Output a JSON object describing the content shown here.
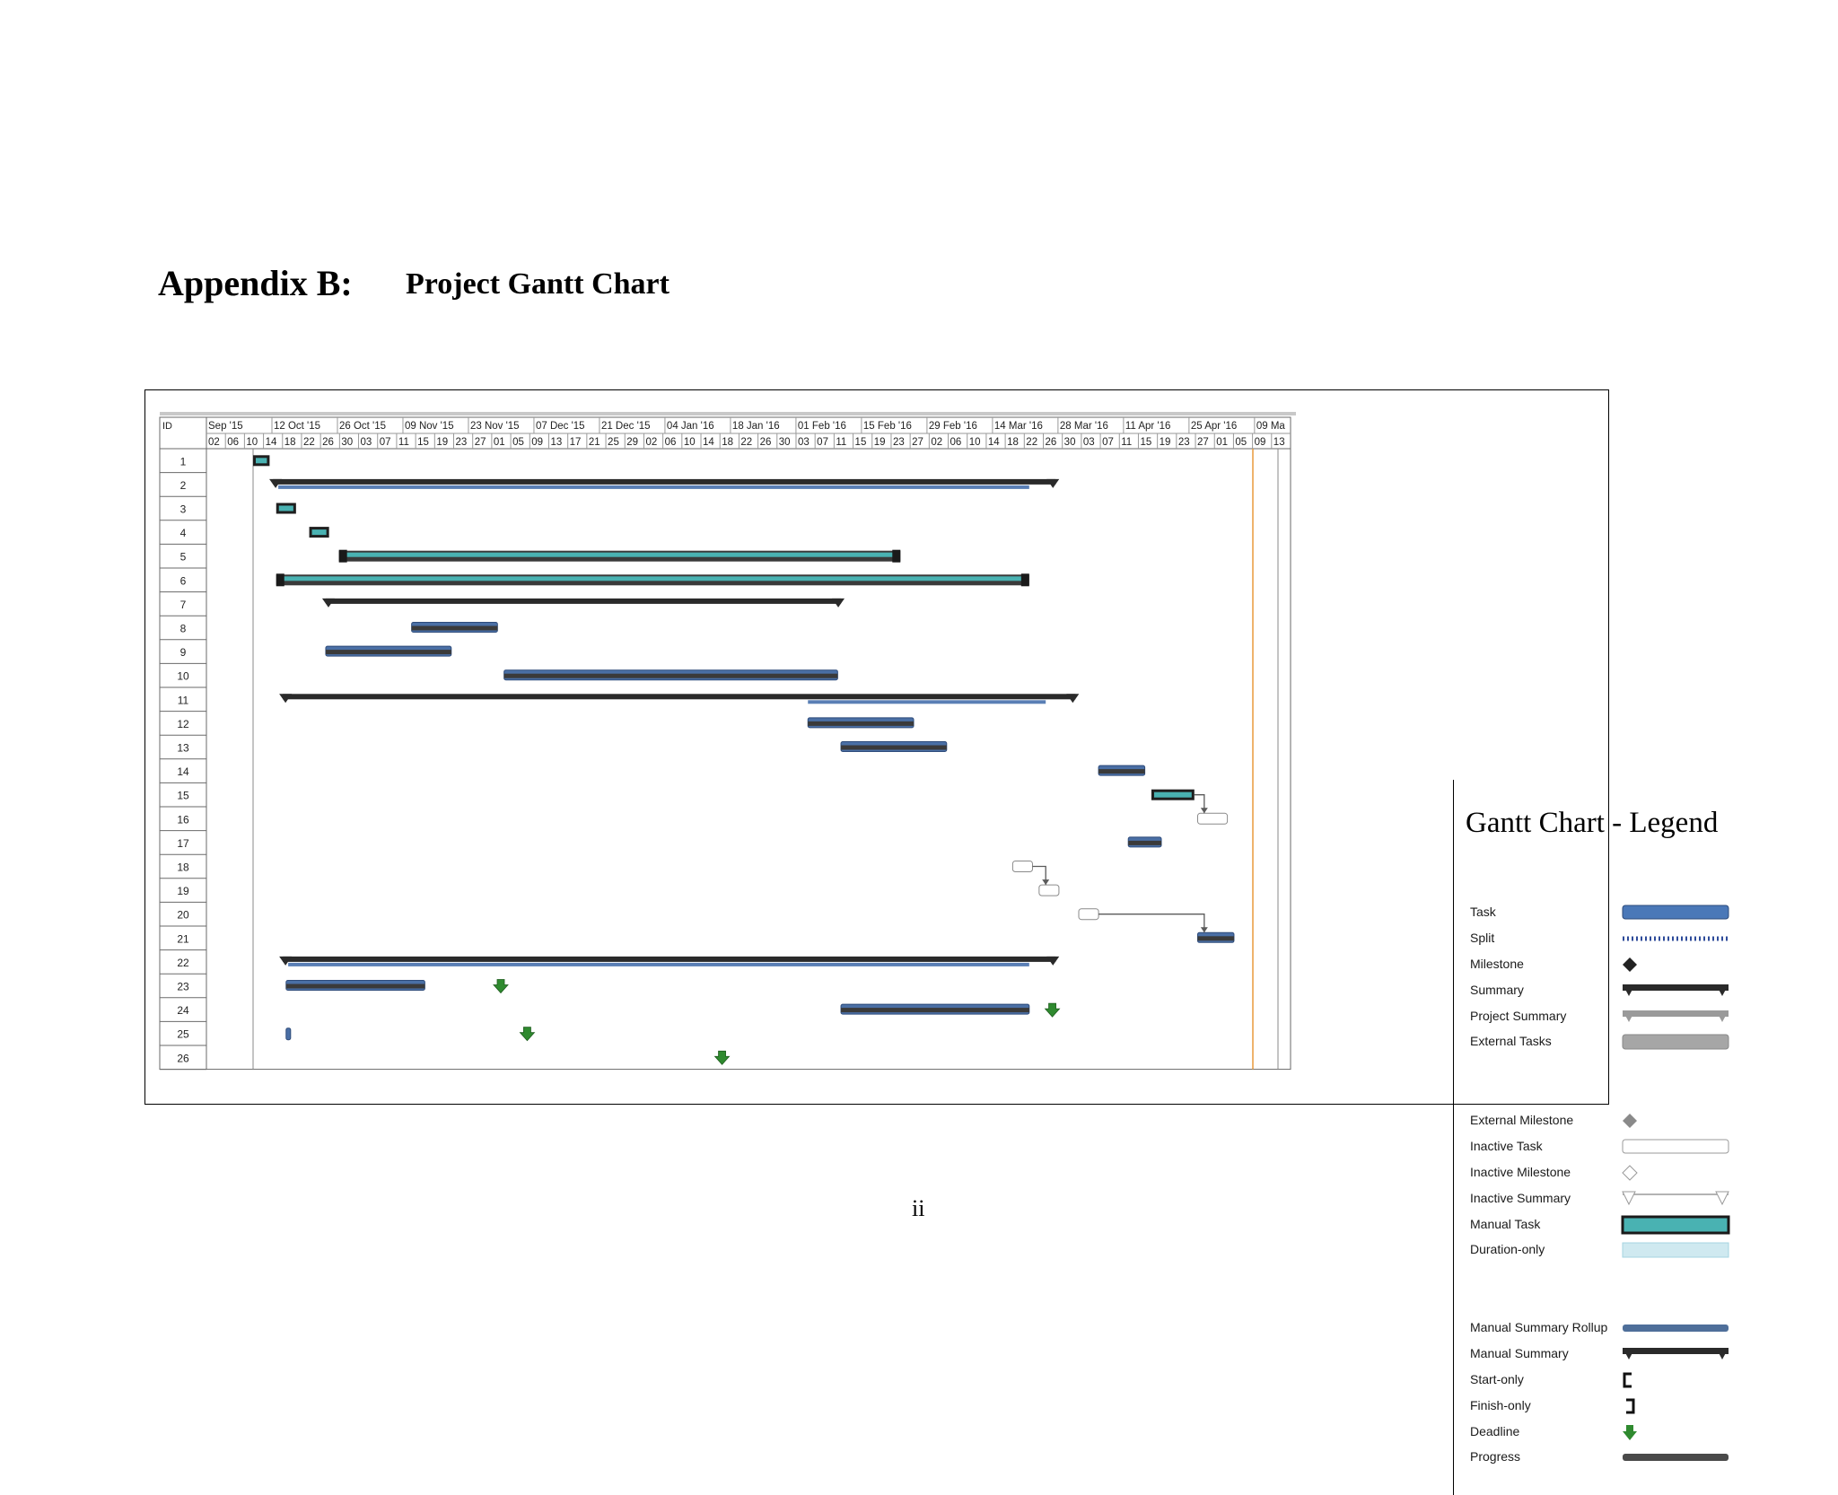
{
  "heading": {
    "label": "Appendix B:",
    "title": "Project Gantt Chart"
  },
  "page_number": "ii",
  "chart_data": {
    "type": "gantt",
    "id_column_label": "ID",
    "month_headers": [
      "Sep '15",
      "12 Oct '15",
      "26 Oct '15",
      "09 Nov '15",
      "23 Nov '15",
      "07 Dec '15",
      "21 Dec '15",
      "04 Jan '16",
      "18 Jan '16",
      "01 Feb '16",
      "15 Feb '16",
      "29 Feb '16",
      "14 Mar '16",
      "28 Mar '16",
      "11 Apr '16",
      "25 Apr '16",
      "09 Ma"
    ],
    "day_headers": [
      "02",
      "06",
      "10",
      "14",
      "18",
      "22",
      "26",
      "30",
      "03",
      "07",
      "11",
      "15",
      "19",
      "23",
      "27",
      "01",
      "05",
      "09",
      "13",
      "17",
      "21",
      "25",
      "29",
      "02",
      "06",
      "10",
      "14",
      "18",
      "22",
      "26",
      "30",
      "03",
      "07",
      "11",
      "15",
      "19",
      "23",
      "27",
      "02",
      "06",
      "10",
      "14",
      "18",
      "22",
      "26",
      "30",
      "03",
      "07",
      "11",
      "15",
      "19",
      "23",
      "27",
      "01",
      "05",
      "09",
      "13"
    ],
    "rows": [
      {
        "id": "1",
        "type": "manual",
        "start": 1.0,
        "end": 1.5
      },
      {
        "id": "2",
        "type": "summary",
        "start": 1.6,
        "end": 25.3,
        "progress_end": 24.5
      },
      {
        "id": "3",
        "type": "manual",
        "start": 1.7,
        "end": 2.3
      },
      {
        "id": "4",
        "type": "manual",
        "start": 2.7,
        "end": 3.3
      },
      {
        "id": "5",
        "type": "manual_long",
        "start": 3.6,
        "end": 20.6
      },
      {
        "id": "6",
        "type": "manual_long",
        "start": 1.7,
        "end": 24.5
      },
      {
        "id": "7",
        "type": "summary",
        "start": 3.2,
        "end": 18.8
      },
      {
        "id": "8",
        "type": "task",
        "start": 5.8,
        "end": 8.4
      },
      {
        "id": "9",
        "type": "task",
        "start": 3.2,
        "end": 7.0
      },
      {
        "id": "10",
        "type": "task",
        "start": 8.6,
        "end": 18.7
      },
      {
        "id": "11",
        "type": "summary",
        "start": 1.9,
        "end": 25.9,
        "progress_start": 17.8,
        "progress_end": 25.0
      },
      {
        "id": "12",
        "type": "task",
        "start": 17.8,
        "end": 21.0
      },
      {
        "id": "13",
        "type": "task",
        "start": 18.8,
        "end": 22.0
      },
      {
        "id": "14",
        "type": "task",
        "start": 26.6,
        "end": 28.0
      },
      {
        "id": "15",
        "type": "manual",
        "start": 28.2,
        "end": 29.5
      },
      {
        "id": "16",
        "type": "inactive",
        "start": 29.6,
        "end": 30.5
      },
      {
        "id": "17",
        "type": "task",
        "start": 27.5,
        "end": 28.5
      },
      {
        "id": "18",
        "type": "inactive",
        "start": 24.0,
        "end": 24.6
      },
      {
        "id": "19",
        "type": "inactive",
        "start": 24.8,
        "end": 25.4
      },
      {
        "id": "20",
        "type": "inactive",
        "start": 26.0,
        "end": 26.6
      },
      {
        "id": "21",
        "type": "task",
        "start": 29.6,
        "end": 30.7
      },
      {
        "id": "22",
        "type": "summary",
        "start": 1.9,
        "end": 25.3,
        "progress_end": 24.5
      },
      {
        "id": "23",
        "type": "task",
        "start": 2.0,
        "end": 6.2,
        "deadline": 8.5
      },
      {
        "id": "24",
        "type": "task",
        "start": 18.8,
        "end": 24.5,
        "deadline": 25.2
      },
      {
        "id": "25",
        "type": "small",
        "start": 2.0,
        "end": 2.1,
        "deadline": 9.3
      },
      {
        "id": "26",
        "type": "deadline_only",
        "deadline": 15.2
      }
    ]
  },
  "legend": {
    "title": "Gantt Chart - Legend",
    "items": [
      "Task",
      "Split",
      "Milestone",
      "Summary",
      "Project Summary",
      "External Tasks",
      "External Milestone",
      "Inactive Task",
      "Inactive Milestone",
      "Inactive Summary",
      "Manual Task",
      "Duration-only",
      "Manual Summary Rollup",
      "Manual Summary",
      "Start-only",
      "Finish-only",
      "Deadline",
      "Progress"
    ]
  }
}
